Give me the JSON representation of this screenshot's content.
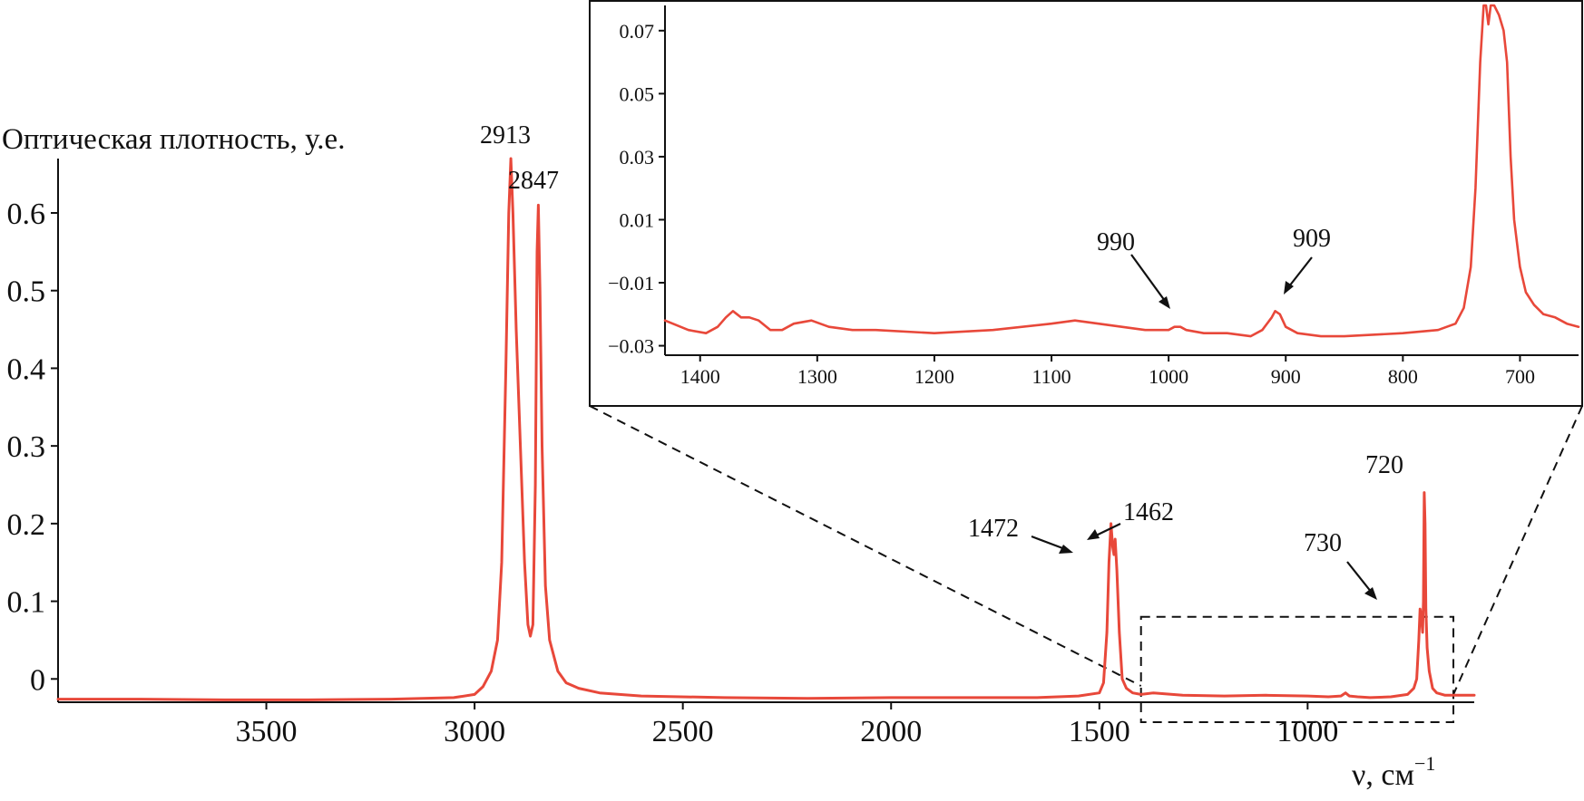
{
  "colors": {
    "trace": "#e8483a",
    "axis": "#111111"
  },
  "chart_data": [
    {
      "type": "line",
      "ylabel": "Оптическая плотность, у.е.",
      "xlabel": "ν, см",
      "xlabel_sup": "−1",
      "x_reversed": true,
      "xlim": [
        4000,
        600
      ],
      "ylim": [
        -0.03,
        0.67
      ],
      "xticks": [
        "3500",
        "3000",
        "2500",
        "2000",
        "1500",
        "1000"
      ],
      "yticks": [
        "0",
        "0.1",
        "0.2",
        "0.3",
        "0.4",
        "0.5",
        "0.6"
      ],
      "series": [
        {
          "x": [
            4000,
            3800,
            3600,
            3400,
            3200,
            3050,
            3000,
            2980,
            2960,
            2945,
            2935,
            2925,
            2918,
            2913,
            2908,
            2900,
            2890,
            2880,
            2872,
            2866,
            2860,
            2854,
            2850,
            2847,
            2843,
            2838,
            2830,
            2820,
            2800,
            2780,
            2750,
            2700,
            2600,
            2400,
            2200,
            2000,
            1800,
            1650,
            1550,
            1500,
            1490,
            1482,
            1477,
            1472,
            1468,
            1465,
            1462,
            1458,
            1452,
            1445,
            1435,
            1420,
            1400,
            1370,
            1300,
            1200,
            1100,
            1000,
            950,
            920,
            909,
            900,
            880,
            850,
            800,
            760,
            745,
            738,
            733,
            730,
            727,
            724,
            722,
            720,
            718,
            716,
            713,
            708,
            700,
            690,
            670,
            650,
            630,
            600
          ],
          "y": [
            -0.026,
            -0.026,
            -0.027,
            -0.027,
            -0.026,
            -0.024,
            -0.02,
            -0.01,
            0.01,
            0.05,
            0.15,
            0.4,
            0.6,
            0.67,
            0.6,
            0.45,
            0.3,
            0.15,
            0.07,
            0.055,
            0.07,
            0.25,
            0.55,
            0.61,
            0.5,
            0.3,
            0.12,
            0.05,
            0.01,
            -0.005,
            -0.012,
            -0.018,
            -0.022,
            -0.024,
            -0.025,
            -0.024,
            -0.024,
            -0.024,
            -0.022,
            -0.018,
            -0.005,
            0.06,
            0.15,
            0.2,
            0.17,
            0.16,
            0.18,
            0.14,
            0.06,
            0.0,
            -0.012,
            -0.018,
            -0.02,
            -0.018,
            -0.021,
            -0.022,
            -0.021,
            -0.022,
            -0.023,
            -0.022,
            -0.018,
            -0.022,
            -0.023,
            -0.024,
            -0.023,
            -0.02,
            -0.012,
            0.0,
            0.05,
            0.09,
            0.08,
            0.06,
            0.1,
            0.24,
            0.2,
            0.09,
            0.04,
            0.01,
            -0.012,
            -0.018,
            -0.021,
            -0.021,
            -0.021,
            -0.021
          ]
        }
      ],
      "annotations": [
        "2913",
        "2847",
        "1472",
        "1462",
        "730",
        "720"
      ],
      "zoom_region": {
        "xlim": [
          1400,
          650
        ],
        "ylim": [
          -0.03,
          0.08
        ]
      }
    },
    {
      "type": "line",
      "x_reversed": true,
      "xlim": [
        1430,
        650
      ],
      "ylim": [
        -0.033,
        0.078
      ],
      "xticks": [
        "1400",
        "1300",
        "1200",
        "1100",
        "1000",
        "900",
        "800",
        "700"
      ],
      "yticks": [
        "−0.03",
        "−0.01",
        "0.01",
        "0.03",
        "0.05",
        "0.07"
      ],
      "series": [
        {
          "x": [
            1430,
            1410,
            1395,
            1385,
            1378,
            1372,
            1365,
            1358,
            1350,
            1340,
            1330,
            1320,
            1305,
            1290,
            1270,
            1250,
            1200,
            1150,
            1100,
            1080,
            1060,
            1040,
            1020,
            1000,
            995,
            990,
            985,
            970,
            950,
            930,
            920,
            912,
            909,
            905,
            900,
            890,
            870,
            850,
            800,
            770,
            755,
            748,
            742,
            738,
            734,
            731,
            729,
            727,
            725,
            722,
            718,
            714,
            711,
            708,
            705,
            700,
            695,
            688,
            680,
            670,
            660,
            650
          ],
          "y": [
            -0.022,
            -0.025,
            -0.026,
            -0.024,
            -0.021,
            -0.019,
            -0.021,
            -0.021,
            -0.022,
            -0.025,
            -0.025,
            -0.023,
            -0.022,
            -0.024,
            -0.025,
            -0.025,
            -0.026,
            -0.025,
            -0.023,
            -0.022,
            -0.023,
            -0.024,
            -0.025,
            -0.025,
            -0.024,
            -0.024,
            -0.025,
            -0.026,
            -0.026,
            -0.027,
            -0.025,
            -0.021,
            -0.019,
            -0.02,
            -0.024,
            -0.026,
            -0.027,
            -0.027,
            -0.026,
            -0.025,
            -0.023,
            -0.018,
            -0.005,
            0.02,
            0.06,
            0.08,
            0.08,
            0.072,
            0.08,
            0.08,
            0.075,
            0.07,
            0.06,
            0.03,
            0.01,
            -0.005,
            -0.013,
            -0.017,
            -0.02,
            -0.021,
            -0.023,
            -0.024
          ]
        }
      ],
      "annotations": [
        "990",
        "909"
      ]
    }
  ]
}
